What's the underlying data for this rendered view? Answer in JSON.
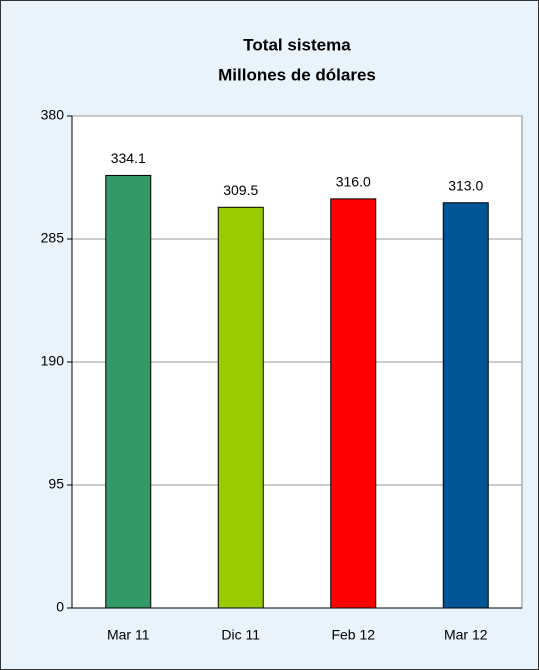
{
  "chart_data": {
    "type": "bar",
    "title": "Total sistema",
    "subtitle": "Millones de dólares",
    "categories": [
      "Mar 11",
      "Dic 11",
      "Feb 12",
      "Mar 12"
    ],
    "values": [
      334.1,
      309.5,
      316.0,
      313.0
    ],
    "value_labels": [
      "334.1",
      "309.5",
      "316.0",
      "313.0"
    ],
    "colors": [
      "#339966",
      "#99cc00",
      "#ff0000",
      "#005596"
    ],
    "ylim": [
      0,
      380
    ],
    "yticks": [
      0,
      95,
      190,
      285,
      380
    ],
    "grid": true
  }
}
